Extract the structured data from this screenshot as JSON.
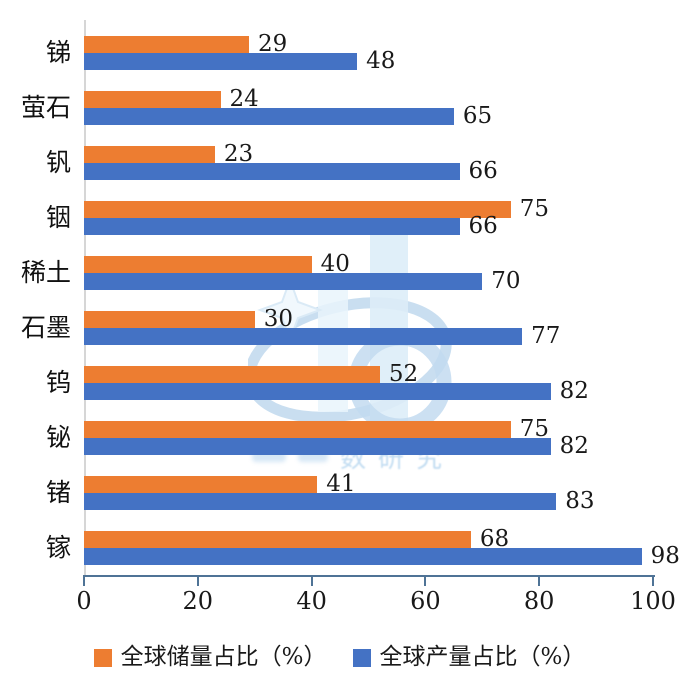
{
  "chart_data": {
    "type": "bar",
    "orientation": "horizontal",
    "title": "",
    "xlabel": "",
    "ylabel": "",
    "categories": [
      "锑",
      "萤石",
      "钒",
      "铟",
      "稀土",
      "石墨",
      "钨",
      "铋",
      "锗",
      "镓"
    ],
    "series": [
      {
        "name": "全球储量占比（%）",
        "color": "#ED7D31",
        "values": [
          29,
          24,
          23,
          75,
          40,
          30,
          52,
          75,
          41,
          68
        ]
      },
      {
        "name": "全球产量占比（%）",
        "color": "#4472C4",
        "values": [
          48,
          65,
          66,
          66,
          70,
          77,
          82,
          82,
          83,
          98
        ]
      }
    ],
    "xlim": [
      0,
      100
    ],
    "x_ticks": [
      0,
      20,
      40,
      60,
      80,
      100
    ],
    "grid": false,
    "legend_position": "bottom",
    "value_labels": true
  },
  "colors": {
    "reserves_orange": "#ED7D31",
    "production_blue": "#4472C4",
    "axis_line": "#4f7396",
    "y_axis_line": "#d6d6d6",
    "text": "#191919",
    "watermark_blue": "#b3d4ee"
  },
  "watermark": {
    "text": "数研究"
  }
}
